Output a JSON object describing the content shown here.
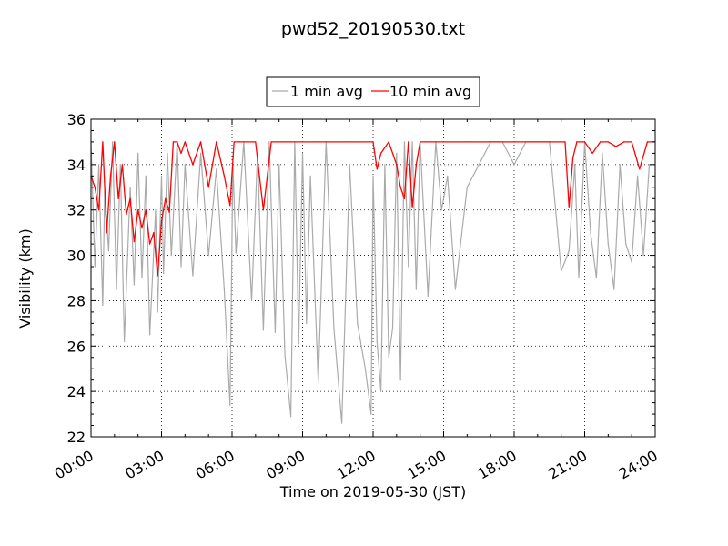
{
  "chart_data": {
    "type": "line",
    "title": "pwd52_20190530.txt",
    "xlabel": "Time on 2019-05-30 (JST)",
    "ylabel": "Visibility (km)",
    "xlim": [
      "00:00",
      "24:00"
    ],
    "ylim": [
      22,
      36
    ],
    "x_ticks": [
      "00:00",
      "03:00",
      "06:00",
      "09:00",
      "12:00",
      "15:00",
      "18:00",
      "21:00",
      "24:00"
    ],
    "y_ticks": [
      "22",
      "24",
      "26",
      "28",
      "30",
      "32",
      "34",
      "36"
    ],
    "grid": true,
    "legend_position": "top-center, above plot",
    "series": [
      {
        "name": "1 min avg",
        "color": "#aaaaaa",
        "x": [
          "00:00",
          "00:10",
          "00:20",
          "00:30",
          "00:35",
          "00:45",
          "00:55",
          "01:05",
          "01:15",
          "01:25",
          "01:40",
          "01:50",
          "02:00",
          "02:10",
          "02:20",
          "02:30",
          "02:45",
          "02:50",
          "03:00",
          "03:05",
          "03:15",
          "03:25",
          "03:40",
          "03:50",
          "04:00",
          "04:20",
          "04:40",
          "05:00",
          "05:20",
          "05:40",
          "05:55",
          "06:02",
          "06:10",
          "06:30",
          "06:50",
          "07:05",
          "07:20",
          "07:35",
          "07:50",
          "08:00",
          "08:15",
          "08:30",
          "08:40",
          "08:50",
          "09:00",
          "09:10",
          "09:20",
          "09:40",
          "10:00",
          "10:20",
          "10:40",
          "11:00",
          "11:20",
          "11:40",
          "11:55",
          "12:00",
          "12:10",
          "12:20",
          "12:30",
          "12:40",
          "12:50",
          "13:00",
          "13:10",
          "13:20",
          "13:30",
          "13:40",
          "13:50",
          "14:00",
          "14:20",
          "14:40",
          "14:55",
          "15:10",
          "15:30",
          "16:00",
          "16:30",
          "17:00",
          "17:30",
          "18:00",
          "18:30",
          "19:00",
          "19:30",
          "20:00",
          "20:20",
          "20:35",
          "20:45",
          "21:00",
          "21:15",
          "21:30",
          "21:45",
          "22:00",
          "22:15",
          "22:30",
          "22:45",
          "23:00",
          "23:15",
          "23:30",
          "23:45",
          "24:00"
        ],
        "y": [
          35.0,
          29.5,
          34.0,
          27.8,
          33.0,
          30.2,
          35.0,
          28.5,
          34.0,
          26.2,
          33.0,
          28.7,
          34.5,
          29.0,
          33.5,
          26.5,
          32.0,
          27.5,
          33.5,
          29.2,
          34.5,
          30.0,
          35.0,
          29.5,
          34.0,
          29.1,
          34.5,
          30.0,
          33.8,
          28.5,
          23.4,
          34.0,
          30.1,
          35.0,
          28.0,
          34.5,
          26.7,
          35.0,
          26.6,
          34.0,
          25.6,
          22.9,
          35.0,
          26.1,
          34.5,
          27.0,
          33.5,
          24.4,
          35.0,
          26.8,
          22.6,
          34.0,
          27.0,
          25.0,
          23.0,
          33.5,
          26.2,
          24.0,
          34.0,
          25.5,
          26.8,
          34.5,
          24.5,
          35.0,
          29.5,
          35.0,
          28.5,
          35.0,
          28.2,
          35.0,
          32.0,
          33.5,
          28.5,
          33.0,
          34.0,
          35.0,
          35.0,
          34.0,
          35.0,
          35.0,
          35.0,
          29.3,
          30.2,
          34.0,
          29.0,
          35.0,
          31.0,
          29.0,
          34.5,
          30.5,
          28.5,
          34.0,
          30.5,
          29.7,
          33.5,
          30.0,
          34.0,
          34.0
        ]
      },
      {
        "name": "10 min avg",
        "color": "#ff0000",
        "x": [
          "00:00",
          "00:10",
          "00:20",
          "00:30",
          "00:40",
          "00:50",
          "01:00",
          "01:10",
          "01:20",
          "01:30",
          "01:40",
          "01:50",
          "02:00",
          "02:10",
          "02:20",
          "02:30",
          "02:40",
          "02:50",
          "03:00",
          "03:10",
          "03:20",
          "03:30",
          "03:40",
          "03:50",
          "04:00",
          "04:20",
          "04:40",
          "05:00",
          "05:20",
          "05:40",
          "05:55",
          "06:05",
          "06:20",
          "06:40",
          "07:00",
          "07:20",
          "07:40",
          "07:55",
          "08:10",
          "08:30",
          "09:00",
          "09:30",
          "10:00",
          "11:00",
          "12:00",
          "12:10",
          "12:20",
          "12:40",
          "13:00",
          "13:10",
          "13:20",
          "13:30",
          "13:40",
          "13:50",
          "14:00",
          "14:20",
          "14:40",
          "15:00",
          "16:00",
          "17:00",
          "18:00",
          "19:00",
          "20:00",
          "20:10",
          "20:20",
          "20:30",
          "20:40",
          "20:50",
          "21:00",
          "21:20",
          "21:40",
          "22:00",
          "22:20",
          "22:40",
          "23:00",
          "23:20",
          "23:40",
          "24:00"
        ],
        "y": [
          33.5,
          33.0,
          32.0,
          35.0,
          31.0,
          33.5,
          35.0,
          32.5,
          34.0,
          31.8,
          32.5,
          30.6,
          32.0,
          31.2,
          32.0,
          30.5,
          31.0,
          29.1,
          31.5,
          32.5,
          31.9,
          35.0,
          35.0,
          34.5,
          35.0,
          34.0,
          35.0,
          33.0,
          35.0,
          33.5,
          32.2,
          35.0,
          35.0,
          35.0,
          35.0,
          32.0,
          35.0,
          35.0,
          35.0,
          35.0,
          35.0,
          35.0,
          35.0,
          35.0,
          35.0,
          33.8,
          34.5,
          35.0,
          34.0,
          33.0,
          32.5,
          35.0,
          32.1,
          34.0,
          35.0,
          35.0,
          35.0,
          35.0,
          35.0,
          35.0,
          35.0,
          35.0,
          35.0,
          35.0,
          32.1,
          34.3,
          35.0,
          35.0,
          35.0,
          34.5,
          35.0,
          35.0,
          34.8,
          35.0,
          35.0,
          33.8,
          35.0,
          35.0
        ]
      }
    ]
  }
}
